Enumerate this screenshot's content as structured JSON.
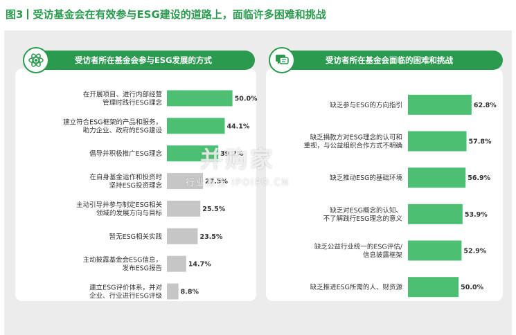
{
  "figure_title": {
    "label": "图3",
    "text": "受访基金会在有效参与ESG建设的道路上，面临许多困难和挑战"
  },
  "colors": {
    "accent": "#2a9a4e",
    "bar_green": "#4cbf72",
    "bar_gray": "#c6c6c6",
    "panel_bg": "#ececec"
  },
  "watermark": {
    "main": "并购家",
    "sub": "行业报告 IPOIPO.CN"
  },
  "chart_data": [
    {
      "type": "bar",
      "orientation": "horizontal",
      "title": "受访者所在基金会参与ESG发展的方式",
      "icon": "atom-icon",
      "unit": "%",
      "xlim": [
        0,
        65
      ],
      "categories": [
        [
          "在开展项目、进行内部经营",
          "管理时践行ESG理念"
        ],
        [
          "建立符合ESG框架的产品和服务，",
          "助力企业、政府的ESG建设"
        ],
        [
          "倡导并积极推广ESG理念"
        ],
        [
          "在自身基金运作和投资时",
          "坚持ESG投资理念"
        ],
        [
          "主动引导并参与制定ESG相关",
          "领域的发展方向与目标"
        ],
        [
          "暂无ESG相关实践"
        ],
        [
          "主动披露基金会ESG信息，",
          "发布ESG报告"
        ],
        [
          "建立ESG评价体系，并对",
          "企业、行业进行ESG评级"
        ]
      ],
      "values": [
        50.0,
        44.1,
        39.2,
        27.5,
        25.5,
        23.5,
        14.7,
        8.8
      ],
      "value_labels": [
        "50.0%",
        "44.1%",
        "39.2%",
        "27.5%",
        "25.5%",
        "23.5%",
        "14.7%",
        "8.8%"
      ],
      "bar_colors": [
        "green",
        "green",
        "green",
        "gray",
        "gray",
        "gray",
        "gray",
        "gray"
      ]
    },
    {
      "type": "bar",
      "orientation": "horizontal",
      "title": "受访者所在基金会面临的困难和挑战",
      "icon": "chat-bubble-icon",
      "unit": "%",
      "xlim": [
        0,
        80
      ],
      "categories": [
        [
          "缺乏参与ESG的方向指引"
        ],
        [
          "缺乏捐款方对ESG理念的认可和",
          "重视，与公益组织合作方式不明确"
        ],
        [
          "缺乏推动ESG的基础环境"
        ],
        [
          "缺乏对ESG概念的认知、",
          "不了解践行ESG理念的意义"
        ],
        [
          "缺乏公益行业统一的ESG评估/",
          "信息披露框架"
        ],
        [
          "缺乏推进ESG所需的人、财资源"
        ]
      ],
      "values": [
        62.8,
        57.8,
        56.9,
        53.9,
        52.9,
        50.0
      ],
      "value_labels": [
        "62.8%",
        "57.8%",
        "56.9%",
        "53.9%",
        "52.9%",
        "50.0%"
      ],
      "bar_colors": [
        "green",
        "green",
        "green",
        "green",
        "green",
        "green"
      ]
    }
  ]
}
